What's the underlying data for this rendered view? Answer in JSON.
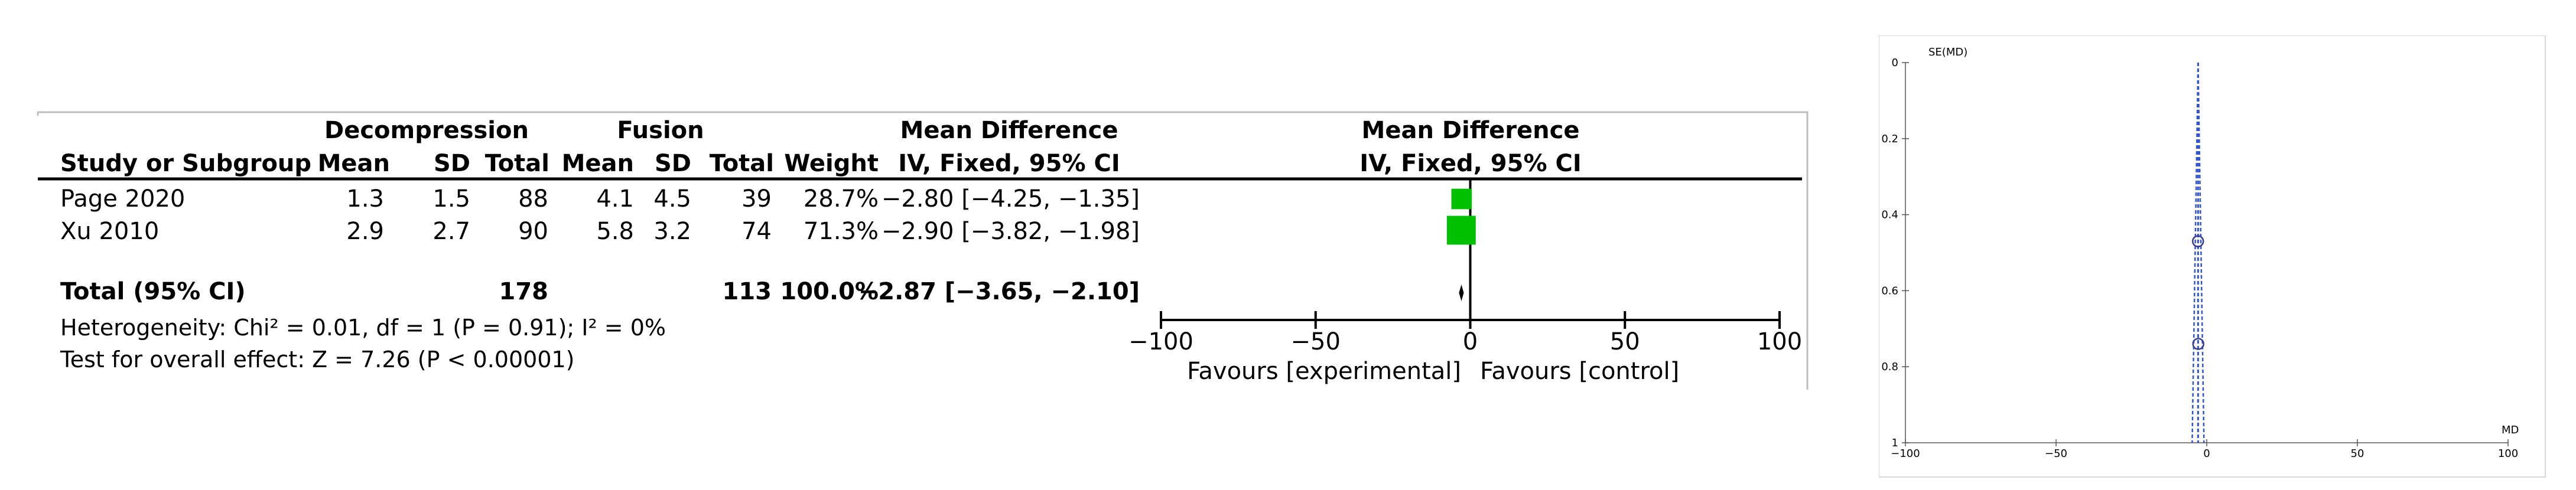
{
  "chart_data": [
    {
      "type": "forest",
      "headers": {
        "group_experimental": "Decompression",
        "group_control": "Fusion",
        "study_col": "Study or Subgroup",
        "mean": "Mean",
        "sd": "SD",
        "total": "Total",
        "weight": "Weight",
        "effect_title": "Mean Difference",
        "effect_method": "IV, Fixed, 95% CI",
        "plot_title": "Mean Difference",
        "plot_method": "IV, Fixed, 95% CI"
      },
      "studies": [
        {
          "name": "Page 2020",
          "exp_mean": "1.3",
          "exp_sd": "1.5",
          "exp_total": "88",
          "ctl_mean": "4.1",
          "ctl_sd": "4.5",
          "ctl_total": "39",
          "weight": "28.7%",
          "ci_text": "−2.80 [−4.25, −1.35]",
          "md": -2.8,
          "lower": -4.25,
          "upper": -1.35,
          "weight_pct": 28.7
        },
        {
          "name": "Xu 2010",
          "exp_mean": "2.9",
          "exp_sd": "2.7",
          "exp_total": "90",
          "ctl_mean": "5.8",
          "ctl_sd": "3.2",
          "ctl_total": "74",
          "weight": "71.3%",
          "ci_text": "−2.90 [−3.82, −1.98]",
          "md": -2.9,
          "lower": -3.82,
          "upper": -1.98,
          "weight_pct": 71.3
        }
      ],
      "total": {
        "label": "Total (95% CI)",
        "exp_total": "178",
        "ctl_total": "113",
        "weight": "100.0%",
        "ci_text": "−2.87 [−3.65, −2.10]",
        "md": -2.87,
        "lower": -3.65,
        "upper": -2.1
      },
      "heterogeneity": "Heterogeneity: Chi² = 0.01, df = 1 (P = 0.91); I² = 0%",
      "overall_effect": "Test for overall effect: Z = 7.26 (P < 0.00001)",
      "axis": {
        "min": -100,
        "max": 100,
        "ticks": [
          "−100",
          "−50",
          "0",
          "50",
          "100"
        ],
        "tick_values": [
          -100,
          -50,
          0,
          50,
          100
        ]
      },
      "favours_left": "Favours [experimental]",
      "favours_right": "Favours [control]",
      "colors": {
        "square": "#00c000",
        "diamond": "#000000"
      }
    },
    {
      "type": "scatter",
      "subtype": "funnel",
      "ylabel": "SE(MD)",
      "xlabel": "MD",
      "xlim": [
        -100,
        100
      ],
      "ylim": [
        0,
        1
      ],
      "y_reversed": true,
      "x_ticks": [
        "−100",
        "−50",
        "0",
        "50",
        "100"
      ],
      "x_tick_values": [
        -100,
        -50,
        0,
        50,
        100
      ],
      "y_ticks": [
        "0",
        "0.2",
        "0.4",
        "0.6",
        "0.8",
        "1"
      ],
      "y_tick_values": [
        0,
        0.2,
        0.4,
        0.6,
        0.8,
        1
      ],
      "points": [
        {
          "x": -2.9,
          "y": 0.47
        },
        {
          "x": -2.8,
          "y": 0.74
        }
      ],
      "pooled_md": -2.87,
      "colors": {
        "points": "#3a3a8c",
        "lines": "#3355cc"
      }
    }
  ]
}
